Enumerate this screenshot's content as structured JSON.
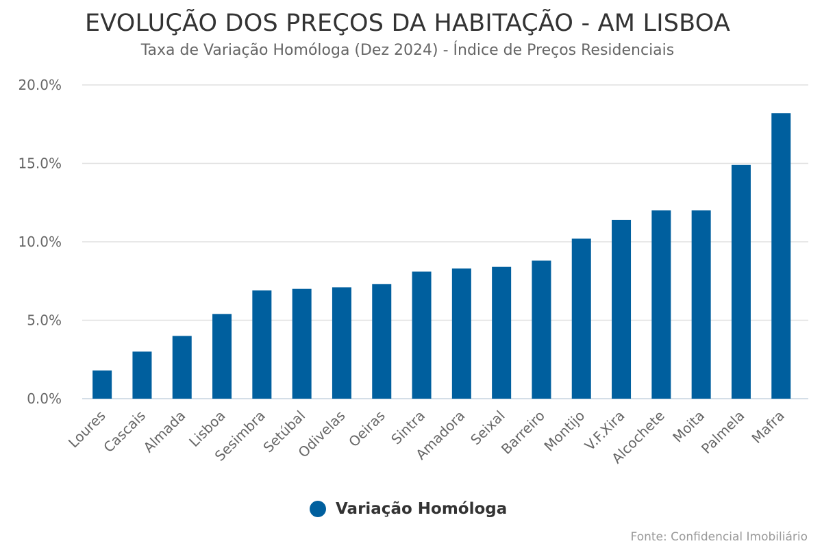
{
  "colors": {
    "bar": "#005f9e",
    "grid": "#e0e0e0",
    "axis_text": "#666666",
    "title": "#333333"
  },
  "header": {
    "title": "EVOLUÇÃO DOS PREÇOS DA HABITAÇÃO - AM LISBOA",
    "subtitle": "Taxa de Variação Homóloga (Dez 2024) - Índice de Preços Residenciais"
  },
  "legend": {
    "label": "Variação Homóloga"
  },
  "footer": {
    "source": "Fonte: Confidencial Imobiliário"
  },
  "chart_data": {
    "type": "bar",
    "title": "EVOLUÇÃO DOS PREÇOS DA HABITAÇÃO - AM LISBOA",
    "subtitle": "Taxa de Variação Homóloga (Dez 2024) - Índice de Preços Residenciais",
    "xlabel": "",
    "ylabel": "",
    "ylim": [
      0,
      20
    ],
    "yticks": [
      0,
      5,
      10,
      15,
      20
    ],
    "ytick_labels": [
      "0.0%",
      "5.0%",
      "10.0%",
      "15.0%",
      "20.0%"
    ],
    "grid": true,
    "legend_position": "bottom-center",
    "categories": [
      "Loures",
      "Cascais",
      "Almada",
      "Lisboa",
      "Sesimbra",
      "Setúbal",
      "Odivelas",
      "Oeiras",
      "Sintra",
      "Amadora",
      "Seixal",
      "Barreiro",
      "Montijo",
      "V.F.Xira",
      "Alcochete",
      "Moita",
      "Palmela",
      "Mafra"
    ],
    "series": [
      {
        "name": "Variação Homóloga",
        "values": [
          1.8,
          3.0,
          4.0,
          5.4,
          6.9,
          7.0,
          7.1,
          7.3,
          8.1,
          8.3,
          8.4,
          8.8,
          10.2,
          11.4,
          12.0,
          12.0,
          14.9,
          18.2
        ]
      }
    ]
  }
}
